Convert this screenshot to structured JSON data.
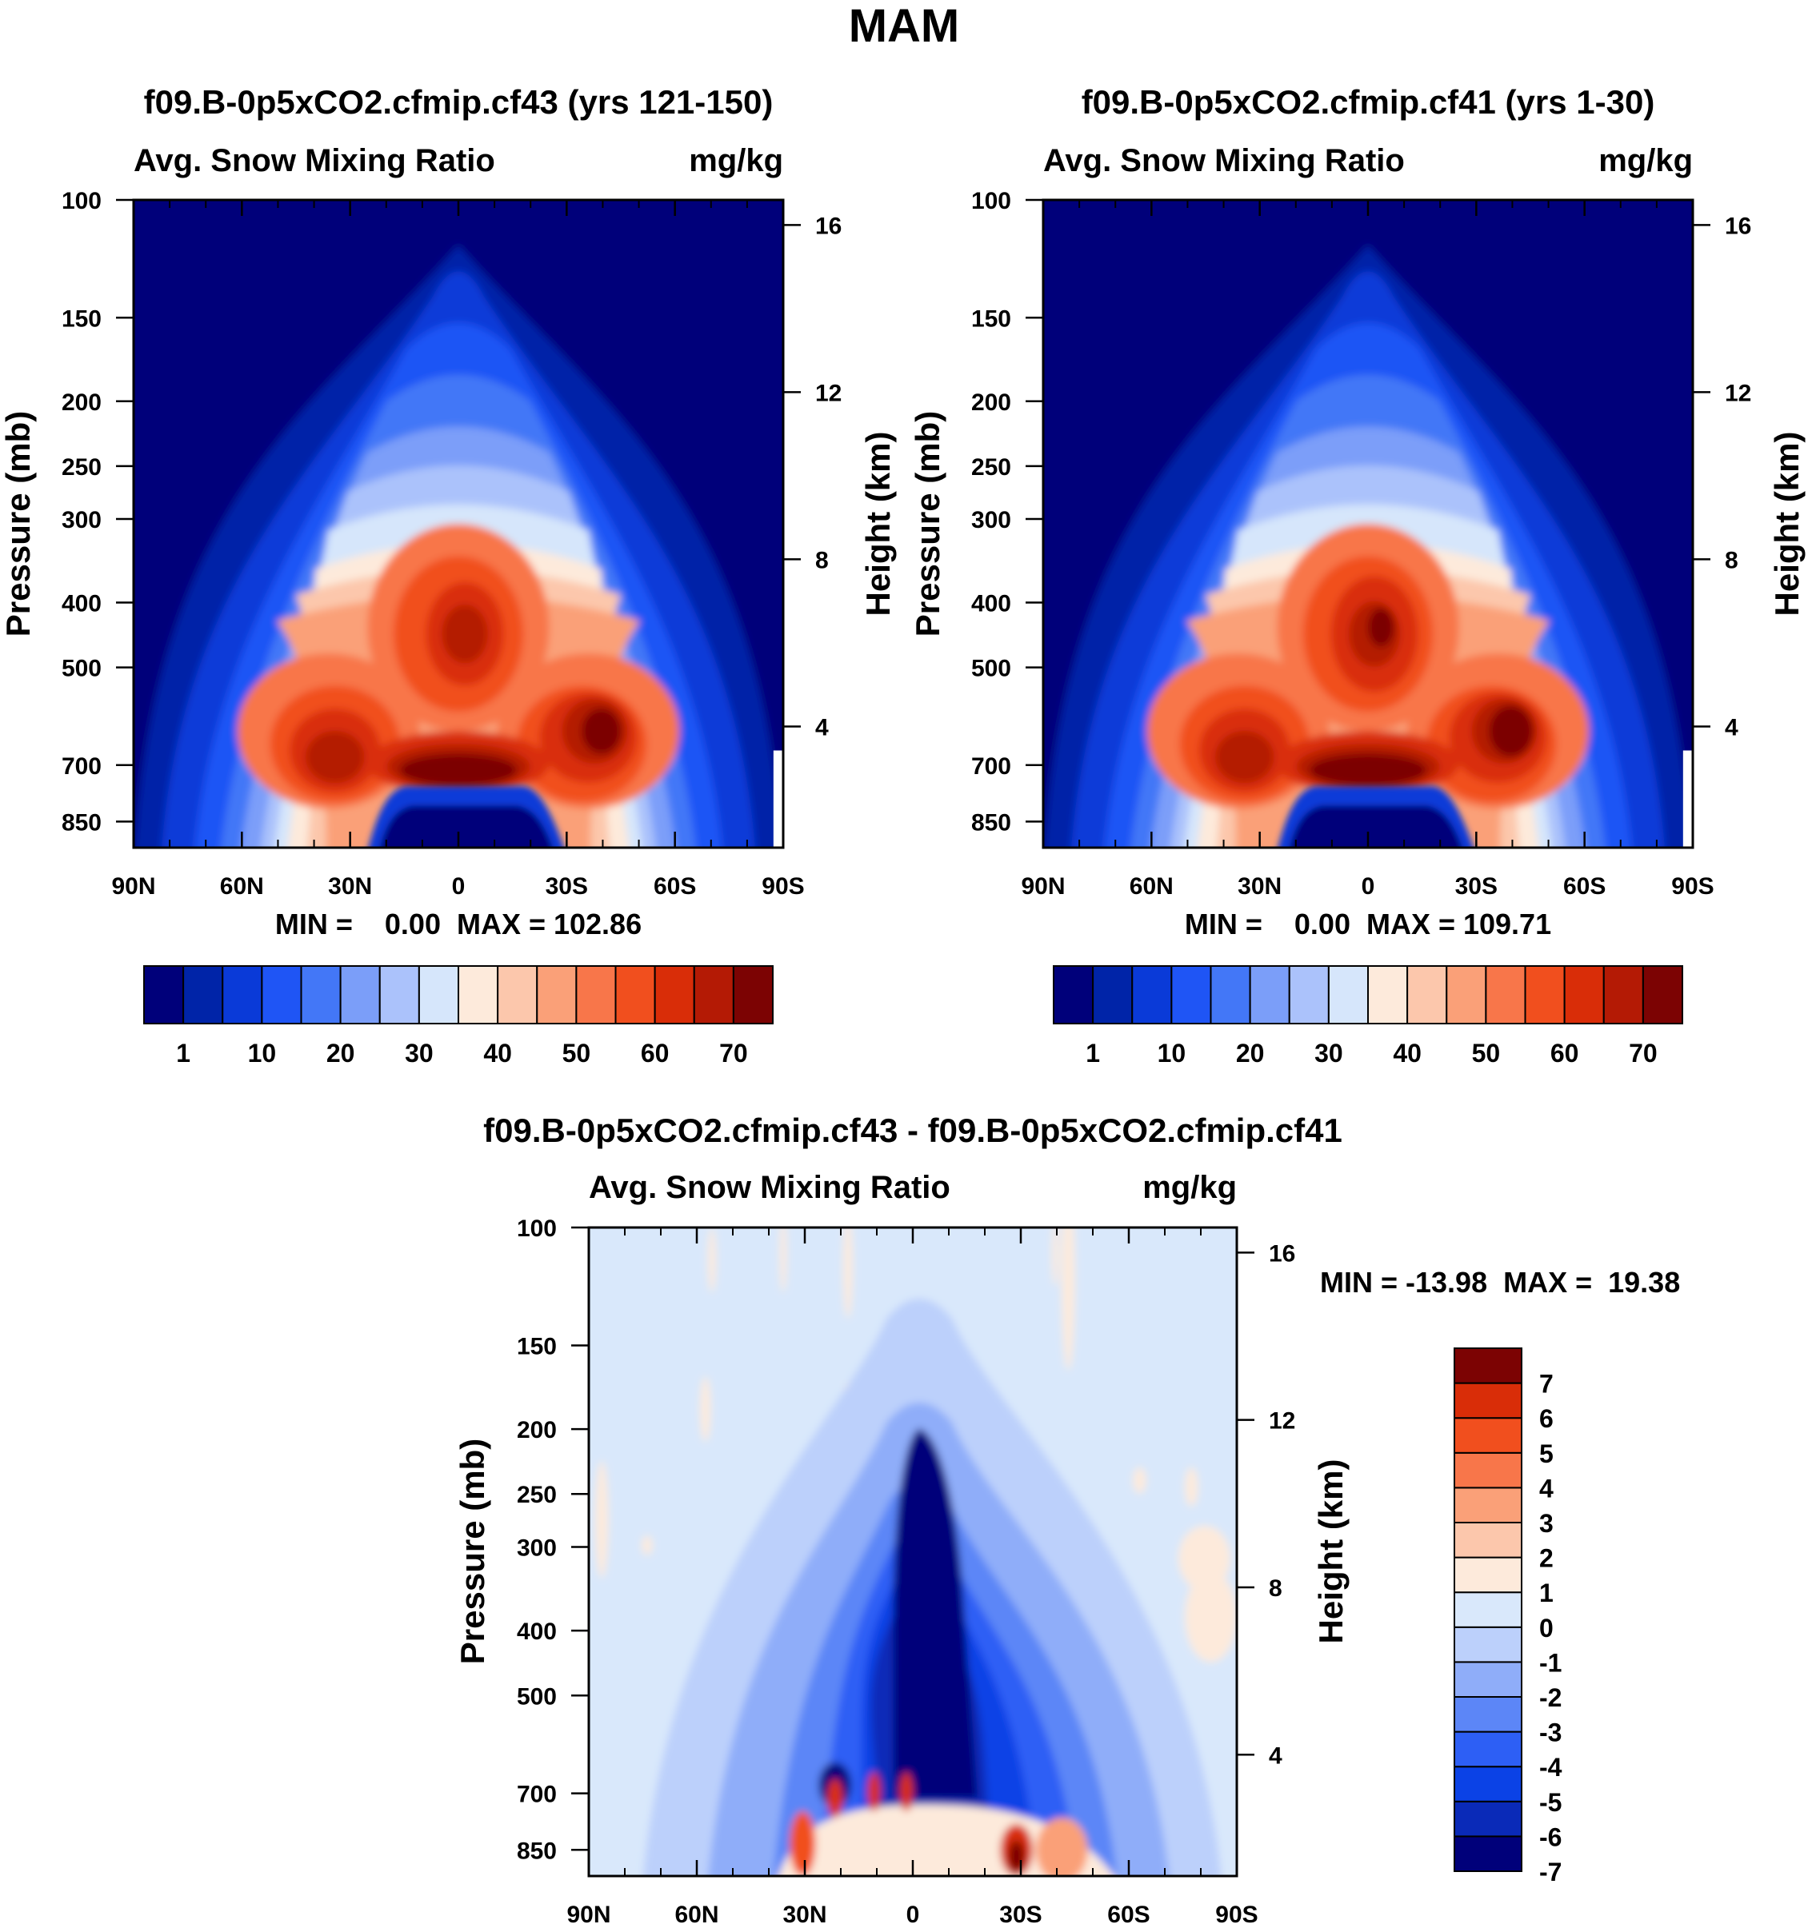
{
  "figure_title": "MAM",
  "colors": {
    "abs_scale": [
      "#00007a",
      "#0024a8",
      "#0a3ad8",
      "#1f55f5",
      "#4377f7",
      "#7b9ef9",
      "#abc2fb",
      "#d6e6fb",
      "#fdeadb",
      "#fcc7ac",
      "#faa078",
      "#f8764a",
      "#f14f1e",
      "#d92d08",
      "#b41a05",
      "#7c0303"
    ],
    "diff_scale": [
      "#00007a",
      "#0a2ab8",
      "#0b42e6",
      "#2d5ff5",
      "#5c86f7",
      "#8fadf9",
      "#bcd0fb",
      "#d9e8fb",
      "#fdeadb",
      "#fcc7ac",
      "#faa078",
      "#f8764a",
      "#f14f1e",
      "#d92d08",
      "#7c0303"
    ]
  },
  "chart_data": [
    {
      "type": "heatmap",
      "title": "f09.B-0p5xCO2.cfmip.cf43 (yrs 121-150)",
      "left_label": "Avg. Snow Mixing Ratio",
      "right_label": "mg/kg",
      "ylabel": "Pressure (mb)",
      "ylabel_right": "Height (km)",
      "x_ticks": [
        "90N",
        "60N",
        "30N",
        "0",
        "30S",
        "60S",
        "90S"
      ],
      "y_ticks": [
        "100",
        "150",
        "200",
        "250",
        "300",
        "400",
        "500",
        "700",
        "850"
      ],
      "y_ticks_right": [
        "16",
        "12",
        "8",
        "4"
      ],
      "stats": "MIN =    0.00  MAX = 102.86",
      "colorbar_labels": [
        "1",
        "10",
        "20",
        "30",
        "40",
        "50",
        "60",
        "70"
      ],
      "min": 0.0,
      "max": 102.86
    },
    {
      "type": "heatmap",
      "title": "f09.B-0p5xCO2.cfmip.cf41 (yrs 1-30)",
      "left_label": "Avg. Snow Mixing Ratio",
      "right_label": "mg/kg",
      "ylabel": "Pressure (mb)",
      "ylabel_right": "Height (km)",
      "x_ticks": [
        "90N",
        "60N",
        "30N",
        "0",
        "30S",
        "60S",
        "90S"
      ],
      "y_ticks": [
        "100",
        "150",
        "200",
        "250",
        "300",
        "400",
        "500",
        "700",
        "850"
      ],
      "y_ticks_right": [
        "16",
        "12",
        "8",
        "4"
      ],
      "stats": "MIN =    0.00  MAX = 109.71",
      "colorbar_labels": [
        "1",
        "10",
        "20",
        "30",
        "40",
        "50",
        "60",
        "70"
      ],
      "min": 0.0,
      "max": 109.71
    },
    {
      "type": "heatmap",
      "title": "f09.B-0p5xCO2.cfmip.cf43 - f09.B-0p5xCO2.cfmip.cf41",
      "left_label": "Avg. Snow Mixing Ratio",
      "right_label": "mg/kg",
      "ylabel": "Pressure (mb)",
      "ylabel_right": "Height (km)",
      "x_ticks": [
        "90N",
        "60N",
        "30N",
        "0",
        "30S",
        "60S",
        "90S"
      ],
      "y_ticks": [
        "100",
        "150",
        "200",
        "250",
        "300",
        "400",
        "500",
        "700",
        "850"
      ],
      "y_ticks_right": [
        "16",
        "12",
        "8",
        "4"
      ],
      "stats": "MIN = -13.98  MAX =  19.38",
      "colorbar_labels": [
        "7",
        "6",
        "5",
        "4",
        "3",
        "2",
        "1",
        "0",
        "-1",
        "-2",
        "-3",
        "-4",
        "-5",
        "-6",
        "-7"
      ],
      "min": -13.98,
      "max": 19.38
    }
  ]
}
